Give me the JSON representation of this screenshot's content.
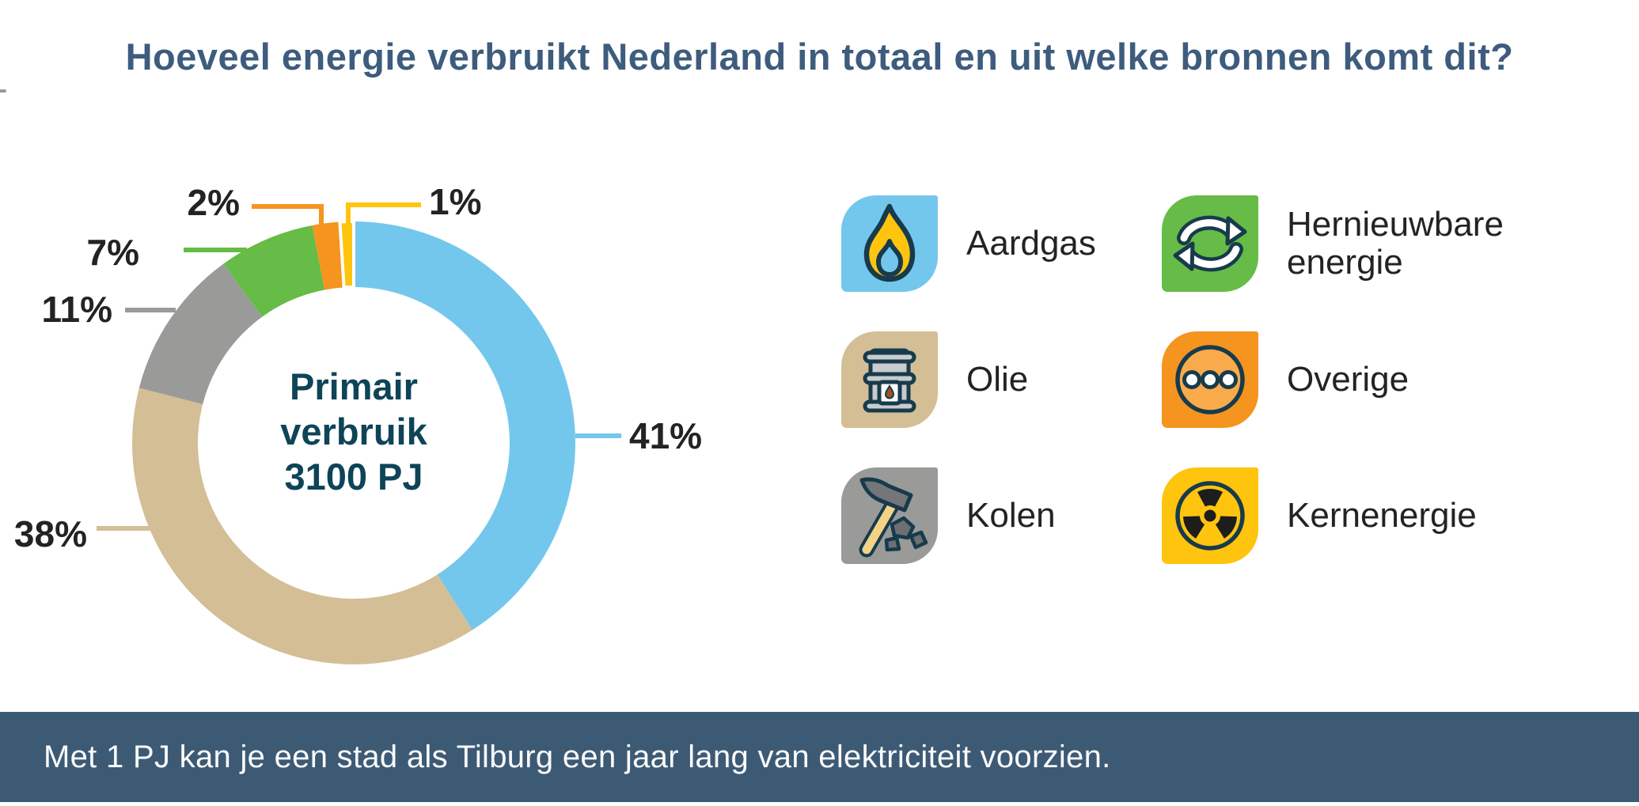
{
  "title": {
    "text": "Hoeveel energie verbruikt Nederland in totaal en uit welke bronnen komt dit?",
    "color": "#3D5C7E"
  },
  "chart_data": {
    "type": "pie",
    "donut": true,
    "title": "Primair verbruik 3100 PJ",
    "center_label_lines": [
      "Primair",
      "verbruik",
      "3100 PJ"
    ],
    "categories": [
      "Aardgas",
      "Olie",
      "Kolen",
      "Hernieuwbare energie",
      "Overige",
      "Kernenergie"
    ],
    "values": [
      41,
      38,
      11,
      7,
      2,
      1
    ],
    "value_unit": "%",
    "colors": [
      "#74C7EC",
      "#D3BE96",
      "#9A9A99",
      "#66BC46",
      "#F5941F",
      "#FFC40D"
    ],
    "start_angle_deg": 0,
    "direction": "clockwise",
    "legend_position": "right"
  },
  "legend": {
    "items": [
      {
        "label": "Aardgas",
        "icon": "flame-icon",
        "color": "#74C7EC"
      },
      {
        "label": "Hernieuwbare energie",
        "icon": "recycle-icon",
        "color": "#66BC46"
      },
      {
        "label": "Olie",
        "icon": "barrel-icon",
        "color": "#D3BE96"
      },
      {
        "label": "Overige",
        "icon": "dots-icon",
        "color": "#F5941F"
      },
      {
        "label": "Kolen",
        "icon": "pickaxe-icon",
        "color": "#9A9A99"
      },
      {
        "label": "Kernenergie",
        "icon": "radiation-icon",
        "color": "#FFC40D"
      }
    ]
  },
  "footer": {
    "text": "Met 1 PJ kan je een stad als Tilburg een jaar lang van elektriciteit voorzien.",
    "bg_color": "#3D5A75",
    "text_color": "#FBFBFB"
  }
}
